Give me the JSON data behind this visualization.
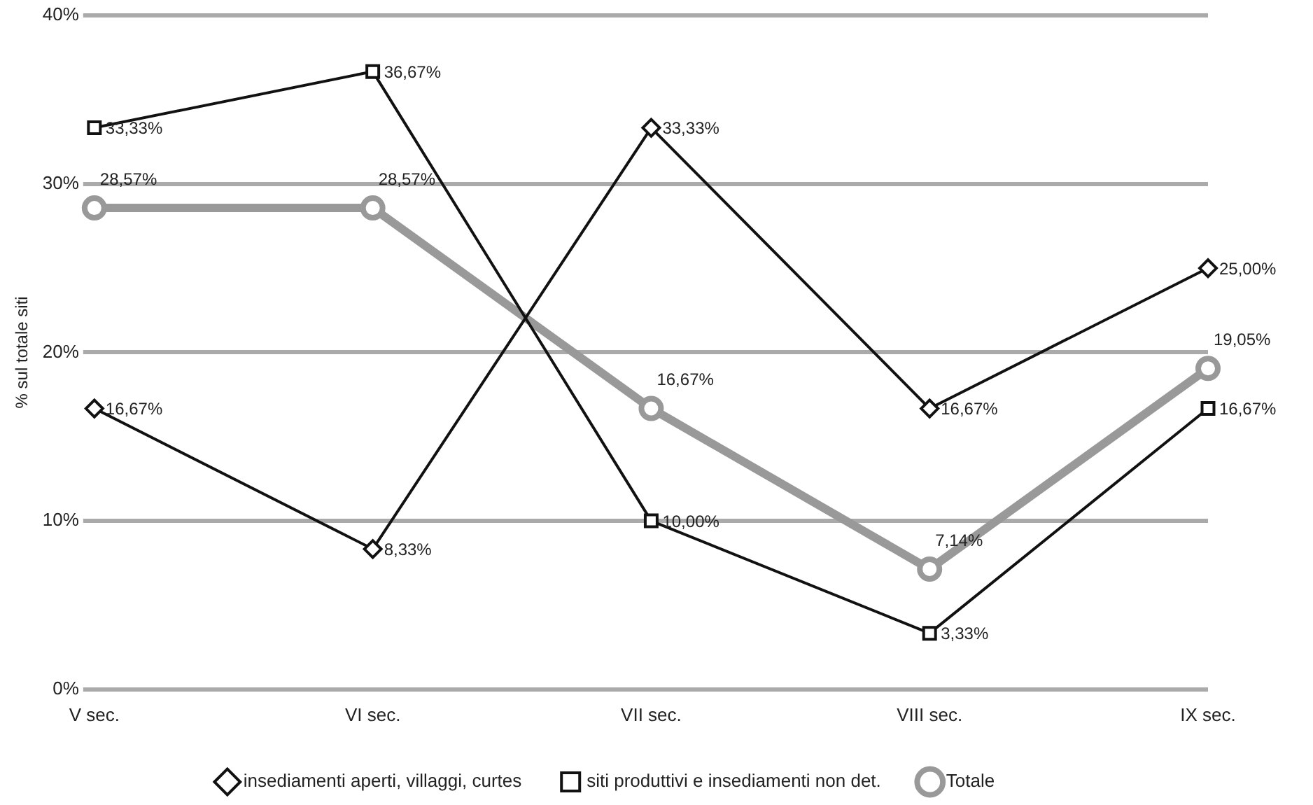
{
  "chart_data": {
    "type": "line",
    "ylabel": "% sul totale siti",
    "categories": [
      "V sec.",
      "VI sec.",
      "VII sec.",
      "VIII sec.",
      "IX sec."
    ],
    "series": [
      {
        "name": "insediamenti aperti, villaggi, curtes",
        "color": "#111111",
        "marker": "diamond",
        "values": [
          16.67,
          8.33,
          33.33,
          16.67,
          25.0
        ],
        "value_labels": [
          "16,67%",
          "8,33%",
          "33,33%",
          "16,67%",
          "25,00%"
        ]
      },
      {
        "name": "siti produttivi e insediamenti non det.",
        "color": "#111111",
        "marker": "square",
        "values": [
          33.33,
          36.67,
          10.0,
          3.33,
          16.67
        ],
        "value_labels": [
          "33,33%",
          "36,67%",
          "10,00%",
          "3,33%",
          "16,67%"
        ]
      },
      {
        "name": "Totale",
        "color": "#999999",
        "marker": "circle",
        "values": [
          28.57,
          28.57,
          16.67,
          7.14,
          19.05
        ],
        "value_labels": [
          "28,57%",
          "28,57%",
          "16,67%",
          "7,14%",
          "19,05%"
        ]
      }
    ],
    "ylim": [
      0,
      40
    ],
    "yticks": [
      {
        "value": 0,
        "label": "0%"
      },
      {
        "value": 10,
        "label": "10%"
      },
      {
        "value": 20,
        "label": "20%"
      },
      {
        "value": 30,
        "label": "30%"
      },
      {
        "value": 40,
        "label": "40%"
      }
    ],
    "grid": "y",
    "legend": "bottom",
    "line_style": "solid"
  }
}
